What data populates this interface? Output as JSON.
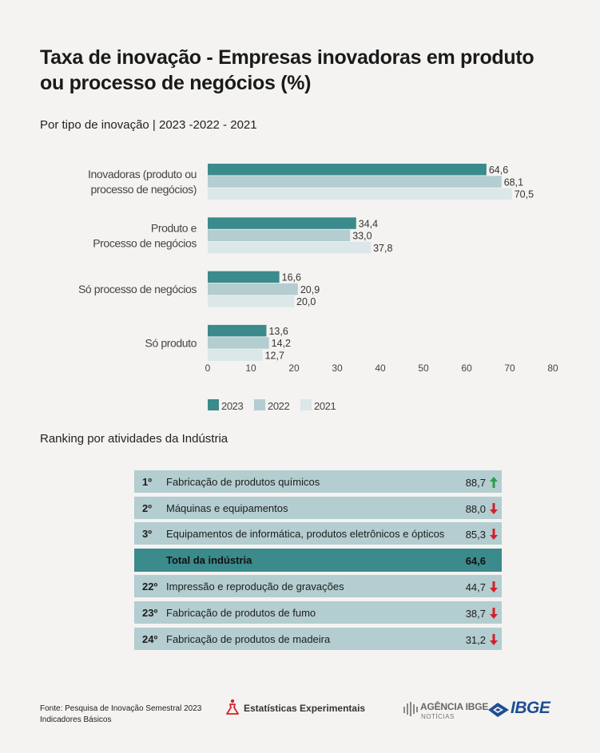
{
  "title": "Taxa de inovação - Empresas inovadoras em produto ou processo de negócios (%)",
  "subtitle": "Por tipo de inovação | 2023 -2022 - 2021",
  "chart_data": {
    "type": "bar",
    "orientation": "horizontal",
    "categories": [
      [
        "Inovadoras (produto ou",
        "processo de negócios)"
      ],
      [
        "Produto e",
        "Processo de negócios"
      ],
      [
        "Só processo de negócios"
      ],
      [
        "Só produto"
      ]
    ],
    "series": [
      {
        "name": "2023",
        "values": [
          64.6,
          34.4,
          16.6,
          13.6
        ],
        "labels": [
          "64,6",
          "34,4",
          "16,6",
          "13,6"
        ],
        "color": "#3b8a8c"
      },
      {
        "name": "2022",
        "values": [
          68.1,
          33.0,
          20.9,
          14.2
        ],
        "labels": [
          "68,1",
          "33,0",
          "20,9",
          "14,2"
        ],
        "color": "#b3cdd0"
      },
      {
        "name": "2021",
        "values": [
          70.5,
          37.8,
          20.0,
          12.7
        ],
        "labels": [
          "70,5",
          "37,8",
          "20,0",
          "12,7"
        ],
        "color": "#dbe7e8"
      }
    ],
    "xlim": [
      0,
      80
    ],
    "xticks": [
      0,
      10,
      20,
      30,
      40,
      50,
      60,
      70,
      80
    ],
    "grid": false,
    "legend_position": "bottom-left"
  },
  "ranking": {
    "heading": "Ranking por atividades da Indústria",
    "rows": [
      {
        "position": "1º",
        "label": "Fabricação de produtos químicos",
        "value": "88,7",
        "trend": "up"
      },
      {
        "position": "2º",
        "label": "Máquinas e equipamentos",
        "value": "88,0",
        "trend": "down"
      },
      {
        "position": "3º",
        "label": "Equipamentos de informática, produtos eletrônicos e ópticos",
        "value": "85,3",
        "trend": "down"
      },
      {
        "position": "",
        "label": "Total da indústria",
        "value": "64,6",
        "trend": "none",
        "total": true
      },
      {
        "position": "22º",
        "label": "Impressão e reprodução de gravações",
        "value": "44,7",
        "trend": "down"
      },
      {
        "position": "23º",
        "label": "Fabricação de produtos de fumo",
        "value": "38,7",
        "trend": "down"
      },
      {
        "position": "24º",
        "label": "Fabricação de produtos de madeira",
        "value": "31,2",
        "trend": "down"
      }
    ],
    "colors": {
      "row": "#b3cdd0",
      "total": "#3b8a8c",
      "up": "#2aa04a",
      "down": "#d3202a"
    }
  },
  "footer": {
    "source_line1": "Fonte: Pesquisa de Inovação Semestral 2023",
    "source_line2": "Indicadores Básicos",
    "experimental": "Estatísticas Experimentais",
    "agencia_title": "AGÊNCIA IBGE",
    "agencia_sub": "NOTÍCIAS",
    "ibge": "IBGE"
  }
}
